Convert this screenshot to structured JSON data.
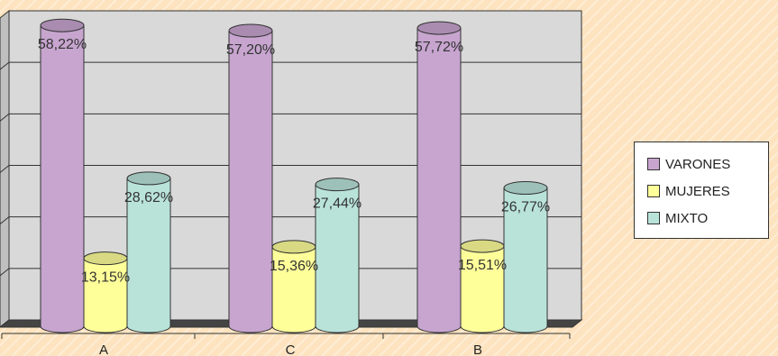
{
  "chart_data": {
    "type": "bar",
    "categories": [
      "A",
      "C",
      "B"
    ],
    "series": [
      {
        "name": "VARONES",
        "values": [
          58.22,
          57.2,
          57.72
        ],
        "labels": [
          "58,22%",
          "57,20%",
          "57,72%"
        ],
        "color": "#c7a5cf"
      },
      {
        "name": "MUJERES",
        "values": [
          13.15,
          15.36,
          15.51
        ],
        "labels": [
          "13,15%",
          "15,36%",
          "15,51%"
        ],
        "color": "#ffff9a"
      },
      {
        "name": "MIXTO",
        "values": [
          28.62,
          27.44,
          26.77
        ],
        "labels": [
          "28,62%",
          "27,44%",
          "26,77%"
        ],
        "color": "#b9e3d9"
      }
    ],
    "ylim": [
      0,
      60
    ],
    "grid": true,
    "legend_position": "right",
    "style": "3d-cylinder"
  }
}
